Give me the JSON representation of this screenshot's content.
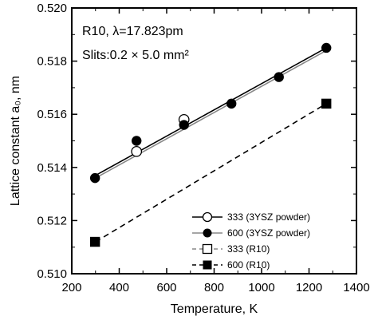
{
  "chart_data": {
    "type": "scatter",
    "xlabel": "Temperature, K",
    "ylabel": "Lattice constant a₀, nm",
    "xlim": [
      200,
      1400
    ],
    "ylim": [
      0.51,
      0.52
    ],
    "xticks": [
      "200",
      "400",
      "600",
      "800",
      "1000",
      "1200",
      "1400"
    ],
    "yticks": [
      "0.510",
      "0.512",
      "0.514",
      "0.516",
      "0.518",
      "0.520"
    ],
    "annotations": [
      "R10, λ=17.823pm",
      "Slits:0.2 × 5.0 mm²"
    ],
    "legend_position": "bottom-right",
    "series": [
      {
        "name": "333 (3YSZ powder)",
        "marker": "open-circle",
        "line": "solid",
        "color": "#000000",
        "x": [
          473,
          673
        ],
        "y": [
          0.5146,
          0.5158
        ],
        "fit": [
          [
            300,
            0.5137
          ],
          [
            1273,
            0.5185
          ]
        ]
      },
      {
        "name": "600 (3YSZ powder)",
        "marker": "filled-circle",
        "line": "solid",
        "color": "#888888",
        "x": [
          298,
          473,
          673,
          873,
          1073,
          1273
        ],
        "y": [
          0.5136,
          0.515,
          0.5156,
          0.5164,
          0.5174,
          0.5185
        ],
        "fit": [
          [
            300,
            0.5136
          ],
          [
            1273,
            0.5184
          ]
        ]
      },
      {
        "name": "333 (R10)",
        "marker": "open-square",
        "line": "dashed",
        "color": "#888888",
        "x": [],
        "y": [],
        "fit": []
      },
      {
        "name": "600 (R10)",
        "marker": "filled-square",
        "line": "dashed",
        "color": "#000000",
        "x": [
          298,
          1273
        ],
        "y": [
          0.5112,
          0.5164
        ],
        "fit": [
          [
            300,
            0.5112
          ],
          [
            1273,
            0.5164
          ]
        ]
      }
    ]
  }
}
